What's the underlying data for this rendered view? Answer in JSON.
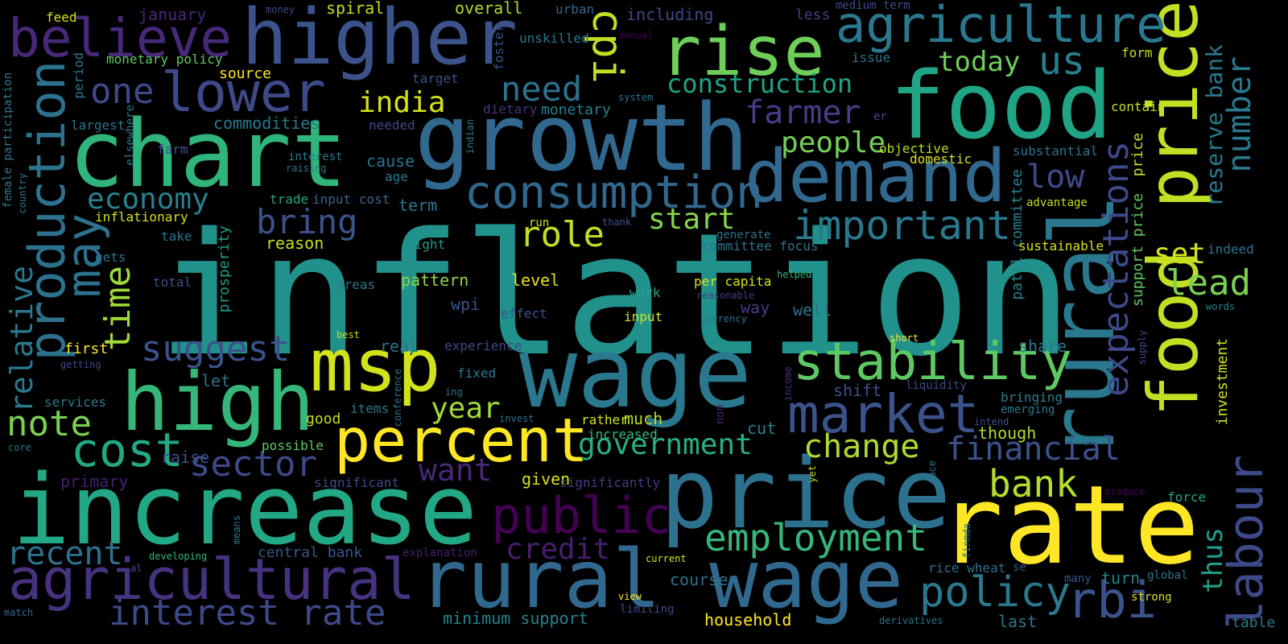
{
  "words": [
    {
      "text": "inflation",
      "color": "#21918c"
    },
    {
      "text": "wage",
      "color": "#2a788e"
    },
    {
      "text": "increase",
      "color": "#22a884"
    },
    {
      "text": "rate",
      "color": "#fde725"
    },
    {
      "text": "price",
      "color": "#2c728e"
    },
    {
      "text": "growth",
      "color": "#31688e"
    },
    {
      "text": "chart",
      "color": "#2fb47c"
    },
    {
      "text": "food",
      "color": "#20a486"
    },
    {
      "text": "food price",
      "color": "#c2df23"
    },
    {
      "text": "rural wage",
      "color": "#31688e"
    },
    {
      "text": "high",
      "color": "#35b779"
    },
    {
      "text": "demand",
      "color": "#31688e"
    },
    {
      "text": "higher",
      "color": "#3b528b"
    },
    {
      "text": "rural",
      "color": "#2a788e"
    },
    {
      "text": "msp",
      "color": "#d2e21b"
    },
    {
      "text": "rise",
      "color": "#6ece58"
    },
    {
      "text": "percent",
      "color": "#fde725"
    },
    {
      "text": "agricultural",
      "color": "#46327e"
    },
    {
      "text": "consumption",
      "color": "#31688e"
    },
    {
      "text": "production",
      "color": "#2c728e"
    },
    {
      "text": "lower",
      "color": "#3e4989"
    },
    {
      "text": "labour",
      "color": "#3e4989"
    },
    {
      "text": "market",
      "color": "#3b528b"
    },
    {
      "text": "stability",
      "color": "#5ec962"
    },
    {
      "text": "agriculture",
      "color": "#2a788e"
    },
    {
      "text": "believe",
      "color": "#482878"
    },
    {
      "text": "public",
      "color": "#440154"
    },
    {
      "text": "cost",
      "color": "#22a884"
    },
    {
      "text": "important",
      "color": "#2a788e"
    },
    {
      "text": "expectations",
      "color": "#3e4989"
    },
    {
      "text": "employment",
      "color": "#35b779"
    },
    {
      "text": "policy",
      "color": "#2a788e"
    },
    {
      "text": "rbi",
      "color": "#3b528b"
    },
    {
      "text": "interest rate",
      "color": "#3e4989"
    },
    {
      "text": "government",
      "color": "#29af7f"
    },
    {
      "text": "change",
      "color": "#addc30"
    },
    {
      "text": "sector",
      "color": "#3e4989"
    },
    {
      "text": "bank",
      "color": "#b5de2b"
    },
    {
      "text": "financial",
      "color": "#3b528b"
    },
    {
      "text": "suggest",
      "color": "#3b528b"
    },
    {
      "text": "recent",
      "color": "#2c728e"
    },
    {
      "text": "note",
      "color": "#7ad151"
    },
    {
      "text": "relative",
      "color": "#2a788e"
    },
    {
      "text": "may",
      "color": "#2c728e"
    },
    {
      "text": "time",
      "color": "#a0da39"
    },
    {
      "text": "economy",
      "color": "#26828e"
    },
    {
      "text": "bring",
      "color": "#3b528b"
    },
    {
      "text": "cpi",
      "color": "#c2df23"
    },
    {
      "text": "need",
      "color": "#2c728e"
    },
    {
      "text": "one",
      "color": "#3e4989"
    },
    {
      "text": "us",
      "color": "#26828e"
    },
    {
      "text": "construction",
      "color": "#20a486"
    },
    {
      "text": "farmer",
      "color": "#433e85"
    },
    {
      "text": "number",
      "color": "#2a788e"
    },
    {
      "text": "reserve bank",
      "color": "#2a788e"
    },
    {
      "text": "thus",
      "color": "#1f9e89"
    },
    {
      "text": "lead",
      "color": "#7ad151"
    },
    {
      "text": "credit",
      "color": "#481f70"
    },
    {
      "text": "want",
      "color": "#482878"
    },
    {
      "text": "year",
      "color": "#a0da39"
    },
    {
      "text": "role",
      "color": "#c2df23"
    },
    {
      "text": "start",
      "color": "#86d549"
    },
    {
      "text": "people",
      "color": "#73d056"
    },
    {
      "text": "today",
      "color": "#6ece58"
    },
    {
      "text": "india",
      "color": "#d8e219"
    },
    {
      "text": "low",
      "color": "#3e4989"
    },
    {
      "text": "set",
      "color": "#d2e21b"
    },
    {
      "text": "course",
      "color": "#2c728e"
    },
    {
      "text": "turn",
      "color": "#26828e"
    },
    {
      "text": "minimum support",
      "color": "#26828e"
    },
    {
      "text": "household",
      "color": "#fde725"
    },
    {
      "text": "central bank",
      "color": "#38588c"
    },
    {
      "text": "price",
      "color": "#c2df23"
    },
    {
      "text": "support price",
      "color": "#5ec962"
    },
    {
      "text": "patel committee",
      "color": "#26828e"
    },
    {
      "text": "investment",
      "color": "#d2e21b"
    },
    {
      "text": "table",
      "color": "#2a788e"
    },
    {
      "text": "though",
      "color": "#addc30"
    },
    {
      "text": "share",
      "color": "#2a788e"
    },
    {
      "text": "much",
      "color": "#b8de29"
    },
    {
      "text": "given",
      "color": "#d8e219"
    },
    {
      "text": "cut",
      "color": "#26828e"
    },
    {
      "text": "well",
      "color": "#2c728e"
    },
    {
      "text": "way",
      "color": "#433e85"
    },
    {
      "text": "shift",
      "color": "#3b528b"
    },
    {
      "text": "fixed",
      "color": "#2a788e"
    },
    {
      "text": "real",
      "color": "#2c728e"
    },
    {
      "text": "wpi",
      "color": "#3b528b"
    },
    {
      "text": "level",
      "color": "#e5e419"
    },
    {
      "text": "pattern",
      "color": "#90d743"
    },
    {
      "text": "effect",
      "color": "#3b528b"
    },
    {
      "text": "input",
      "color": "#d2e21b"
    },
    {
      "text": "per capita",
      "color": "#d8e219"
    },
    {
      "text": "work",
      "color": "#22a884"
    },
    {
      "text": "good",
      "color": "#c2df23"
    },
    {
      "text": "let",
      "color": "#2c728e"
    },
    {
      "text": "raise",
      "color": "#3b528b"
    },
    {
      "text": "primary",
      "color": "#481f70"
    },
    {
      "text": "possible",
      "color": "#5ec962"
    },
    {
      "text": "significant",
      "color": "#3e4989"
    },
    {
      "text": "significantly",
      "color": "#433e85"
    },
    {
      "text": "increased",
      "color": "#35b779"
    },
    {
      "text": "rather",
      "color": "#d2e21b"
    },
    {
      "text": "items",
      "color": "#2a788e"
    },
    {
      "text": "experience",
      "color": "#3e4989"
    },
    {
      "text": "first",
      "color": "#fde725"
    },
    {
      "text": "services",
      "color": "#2a788e"
    },
    {
      "text": "reason",
      "color": "#c2df23"
    },
    {
      "text": "fight",
      "color": "#1f9e89"
    },
    {
      "text": "prosperity",
      "color": "#1f9e89"
    },
    {
      "text": "total",
      "color": "#3b528b"
    },
    {
      "text": "areas",
      "color": "#2a788e"
    },
    {
      "text": "take",
      "color": "#2c728e"
    },
    {
      "text": "gets",
      "color": "#2c728e"
    },
    {
      "text": "inflationary",
      "color": "#d2e21b"
    },
    {
      "text": "trade",
      "color": "#22a884"
    },
    {
      "text": "input cost",
      "color": "#31688e"
    },
    {
      "text": "term",
      "color": "#2a788e"
    },
    {
      "text": "cause",
      "color": "#2c728e"
    },
    {
      "text": "age",
      "color": "#2a788e"
    },
    {
      "text": "farm",
      "color": "#3b528b"
    },
    {
      "text": "largest",
      "color": "#2c728e"
    },
    {
      "text": "commodities",
      "color": "#2a788e"
    },
    {
      "text": "needed",
      "color": "#3e4989"
    },
    {
      "text": "monetary",
      "color": "#26828e"
    },
    {
      "text": "objective",
      "color": "#b8de29"
    },
    {
      "text": "domestic",
      "color": "#d8e219"
    },
    {
      "text": "substantial",
      "color": "#2c728e"
    },
    {
      "text": "contain",
      "color": "#c2df23"
    },
    {
      "text": "spiral",
      "color": "#c2df23"
    },
    {
      "text": "overall",
      "color": "#addc30"
    },
    {
      "text": "including",
      "color": "#3e4989"
    },
    {
      "text": "less",
      "color": "#433e85"
    },
    {
      "text": "medium term",
      "color": "#3e4989"
    },
    {
      "text": "january",
      "color": "#482878"
    },
    {
      "text": "feed",
      "color": "#d8e219"
    },
    {
      "text": "money",
      "color": "#3e4989"
    },
    {
      "text": "urban",
      "color": "#31688e"
    },
    {
      "text": "unskilled",
      "color": "#2a788e"
    },
    {
      "text": "annual",
      "color": "#440154"
    },
    {
      "text": "issue",
      "color": "#2c728e"
    },
    {
      "text": "form",
      "color": "#c2df23"
    },
    {
      "text": "monetary policy",
      "color": "#5ec962"
    },
    {
      "text": "source",
      "color": "#fde725"
    },
    {
      "text": "target",
      "color": "#3b528b"
    },
    {
      "text": "period",
      "color": "#2a788e"
    },
    {
      "text": "foster",
      "color": "#3b528b"
    },
    {
      "text": "system",
      "color": "#2c728e"
    },
    {
      "text": "dietary",
      "color": "#46327e"
    },
    {
      "text": "er",
      "color": "#3e4989"
    },
    {
      "text": "indian",
      "color": "#2a788e"
    },
    {
      "text": "elsewhere",
      "color": "#2a788e"
    },
    {
      "text": "interest",
      "color": "#2a788e"
    },
    {
      "text": "raising",
      "color": "#2c728e"
    },
    {
      "text": "female participation",
      "color": "#2a788e"
    },
    {
      "text": "country",
      "color": "#2a788e"
    },
    {
      "text": "advantage",
      "color": "#c2df23"
    },
    {
      "text": "sustainable",
      "color": "#d8e219"
    },
    {
      "text": "indeed",
      "color": "#2c728e"
    },
    {
      "text": "committee focus",
      "color": "#2c728e"
    },
    {
      "text": "generate",
      "color": "#2c728e"
    },
    {
      "text": "run",
      "color": "#d2e21b"
    },
    {
      "text": "thank",
      "color": "#3b528b"
    },
    {
      "text": "helped",
      "color": "#35b779"
    },
    {
      "text": "reasonable",
      "color": "#433e85"
    },
    {
      "text": "currency",
      "color": "#2c728e"
    },
    {
      "text": "words",
      "color": "#26828e"
    },
    {
      "text": "best",
      "color": "#c2df23"
    },
    {
      "text": "short",
      "color": "#fde725"
    },
    {
      "text": "supply",
      "color": "#3e4989"
    },
    {
      "text": "getting",
      "color": "#3e4989"
    },
    {
      "text": "ing",
      "color": "#2a788e"
    },
    {
      "text": "income",
      "color": "#46327e"
    },
    {
      "text": "conference",
      "color": "#2c728e"
    },
    {
      "text": "non",
      "color": "#481f70"
    },
    {
      "text": "invest",
      "color": "#2c728e"
    },
    {
      "text": "liquidity",
      "color": "#3e4989"
    },
    {
      "text": "bringing",
      "color": "#26828e"
    },
    {
      "text": "emerging",
      "color": "#2a788e"
    },
    {
      "text": "intend",
      "color": "#3b528b"
    },
    {
      "text": "pace",
      "color": "#2a788e"
    },
    {
      "text": "yet",
      "color": "#c2df23"
    },
    {
      "text": "core",
      "color": "#2a788e"
    },
    {
      "text": "produce",
      "color": "#440154"
    },
    {
      "text": "force",
      "color": "#20a486"
    },
    {
      "text": "developing",
      "color": "#35b779"
    },
    {
      "text": "explanation",
      "color": "#481f70"
    },
    {
      "text": "current",
      "color": "#d8e219"
    },
    {
      "text": "means",
      "color": "#2a788e"
    },
    {
      "text": "finmda",
      "color": "#2c728e"
    },
    {
      "text": "rice wheat",
      "color": "#2c728e"
    },
    {
      "text": "se",
      "color": "#3b528b"
    },
    {
      "text": "many",
      "color": "#3b528b"
    },
    {
      "text": "global",
      "color": "#2c728e"
    },
    {
      "text": "strong",
      "color": "#d8e219"
    },
    {
      "text": "al",
      "color": "#3b528b"
    },
    {
      "text": "view",
      "color": "#fde725"
    },
    {
      "text": "limiting",
      "color": "#3e4989"
    },
    {
      "text": "match",
      "color": "#31688e"
    },
    {
      "text": "derivatives",
      "color": "#2c728e"
    },
    {
      "text": "last",
      "color": "#2c728e"
    }
  ]
}
